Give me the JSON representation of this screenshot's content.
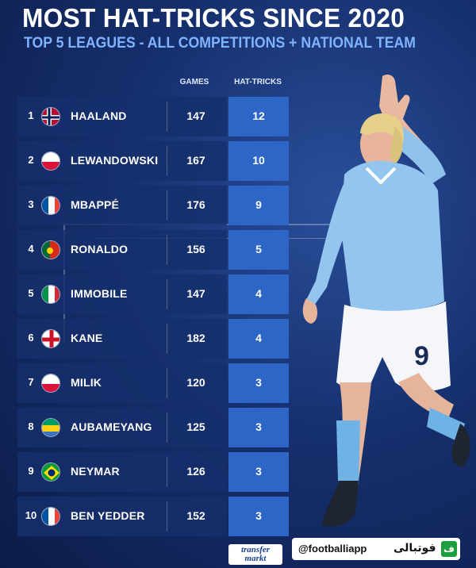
{
  "header": {
    "title": "MOST HAT-TRICKS SINCE 2020",
    "subtitle": "TOP 5 LEAGUES - ALL COMPETITIONS + NATIONAL TEAM"
  },
  "columns": {
    "games": "GAMES",
    "hattricks": "HAT-TRICKS"
  },
  "rows": [
    {
      "rank": "1",
      "flag": "norway-flag",
      "name": "HAALAND",
      "games": "147",
      "hattricks": "12"
    },
    {
      "rank": "2",
      "flag": "poland-flag",
      "name": "LEWANDOWSKI",
      "games": "167",
      "hattricks": "10"
    },
    {
      "rank": "3",
      "flag": "france-flag",
      "name": "MBAPPÉ",
      "games": "176",
      "hattricks": "9"
    },
    {
      "rank": "4",
      "flag": "portugal-flag",
      "name": "RONALDO",
      "games": "156",
      "hattricks": "5"
    },
    {
      "rank": "5",
      "flag": "italy-flag",
      "name": "IMMOBILE",
      "games": "147",
      "hattricks": "4"
    },
    {
      "rank": "6",
      "flag": "england-flag",
      "name": "KANE",
      "games": "182",
      "hattricks": "4"
    },
    {
      "rank": "7",
      "flag": "poland-flag",
      "name": "MILIK",
      "games": "120",
      "hattricks": "3"
    },
    {
      "rank": "8",
      "flag": "gabon-flag",
      "name": "AUBAMEYANG",
      "games": "125",
      "hattricks": "3"
    },
    {
      "rank": "9",
      "flag": "brazil-flag",
      "name": "NEYMAR",
      "games": "126",
      "hattricks": "3"
    },
    {
      "rank": "10",
      "flag": "france-flag",
      "name": "BEN YEDDER",
      "games": "152",
      "hattricks": "3"
    }
  ],
  "footer": {
    "source_logo": [
      "transfer",
      "markt"
    ],
    "handle": "@footballiapp",
    "brand_name": "فوتبالی",
    "brand_logo_glyph": "ف"
  },
  "colors": {
    "background": "#16306e",
    "subtitle": "#7fb3ff",
    "hattrick_column": "#2e66c8",
    "row": "#16306c"
  }
}
